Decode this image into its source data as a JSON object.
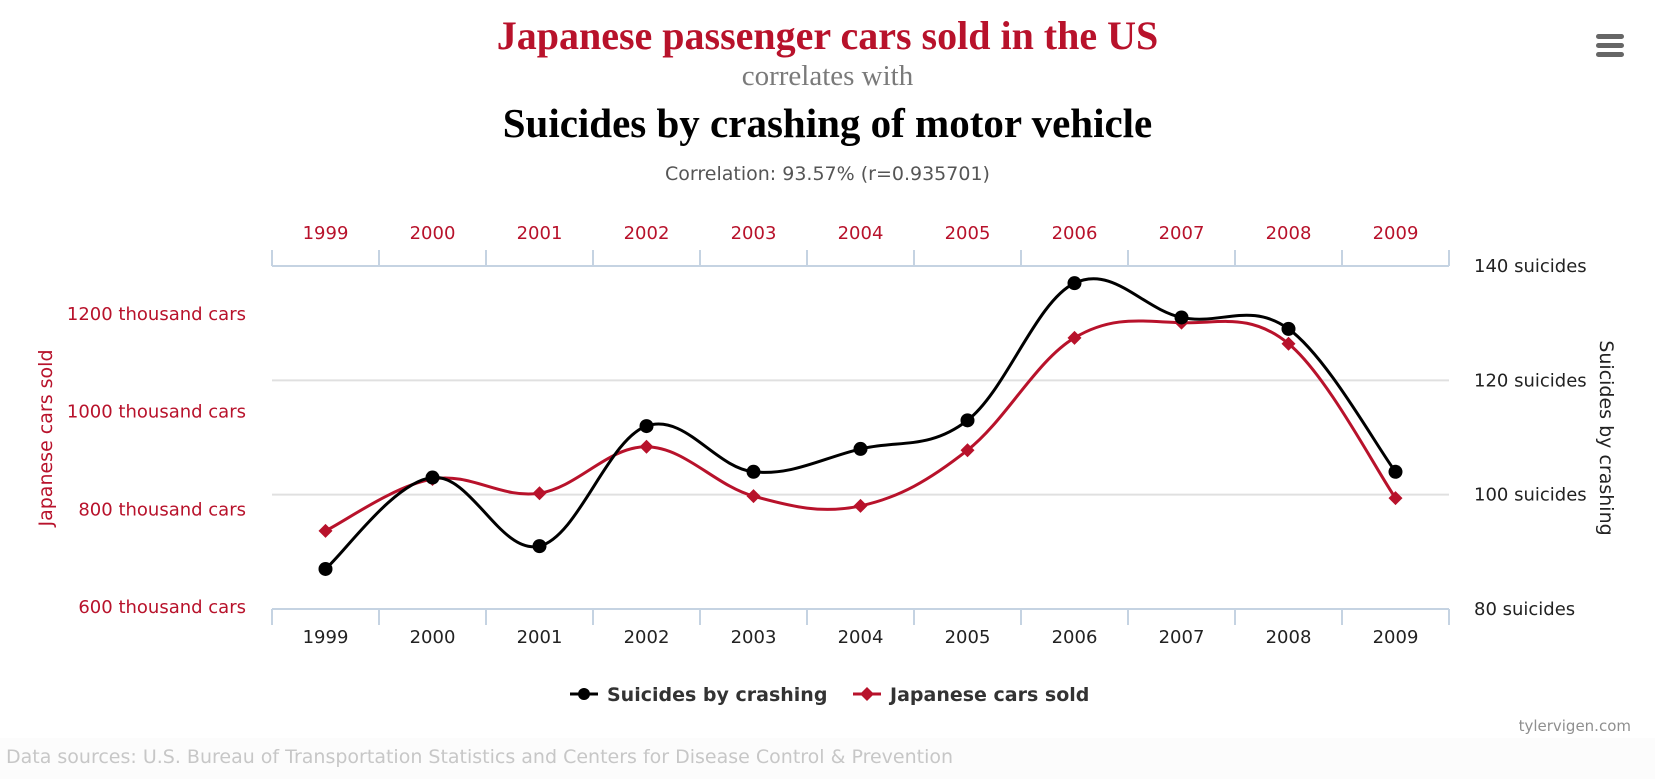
{
  "header": {
    "title_main": "Japanese passenger cars sold in the US",
    "connector": "correlates with",
    "title_second": "Suicides by crashing of motor vehicle",
    "correlation": "Correlation: 93.57% (r=0.935701)"
  },
  "menu": {
    "icon": "hamburger-menu-icon"
  },
  "footer": {
    "sources": "Data sources: U.S. Bureau of Transportation Statistics and Centers for Disease Control & Prevention",
    "credit": "tylervigen.com"
  },
  "colors": {
    "cars": "#b8122b",
    "suicides": "#000000",
    "axis_line": "#c5d3e2",
    "grid": "#e0e0e0",
    "left_label": "#b8122b",
    "right_label": "#222222"
  },
  "chart_data": {
    "type": "line",
    "title": "Japanese passenger cars sold in the US correlates with Suicides by crashing of motor vehicle",
    "x": [
      "1999",
      "2000",
      "2001",
      "2002",
      "2003",
      "2004",
      "2005",
      "2006",
      "2007",
      "2008",
      "2009"
    ],
    "series": [
      {
        "name": "Suicides by crashing",
        "axis": "right",
        "marker": "circle",
        "color": "#000000",
        "values": [
          87,
          103,
          91,
          112,
          104,
          108,
          113,
          137,
          131,
          129,
          104
        ]
      },
      {
        "name": "Japanese cars sold",
        "axis": "left",
        "marker": "diamond",
        "color": "#b8122b",
        "values": [
          756,
          862,
          833,
          928,
          827,
          807,
          921,
          1151,
          1182,
          1139,
          823
        ]
      }
    ],
    "left_axis": {
      "label": "Japanese cars sold",
      "ticks": [
        600,
        800,
        1000,
        1200
      ],
      "tick_labels": [
        "600 thousand cars",
        "800 thousand cars",
        "1000 thousand cars",
        "1200 thousand cars"
      ],
      "ylim": [
        596,
        1298
      ]
    },
    "right_axis": {
      "label": "Suicides by crashing",
      "ticks": [
        80,
        100,
        120,
        140
      ],
      "tick_labels": [
        "80 suicides",
        "100 suicides",
        "120 suicides",
        "140 suicides"
      ],
      "ylim": [
        80,
        140
      ]
    },
    "top_axis_labels": [
      "1999",
      "2000",
      "2001",
      "2002",
      "2003",
      "2004",
      "2005",
      "2006",
      "2007",
      "2008",
      "2009"
    ],
    "bottom_axis_labels": [
      "1999",
      "2000",
      "2001",
      "2002",
      "2003",
      "2004",
      "2005",
      "2006",
      "2007",
      "2008",
      "2009"
    ],
    "grid": true,
    "legend": {
      "position": "bottom-center",
      "items": [
        "Suicides by crashing",
        "Japanese cars sold"
      ]
    }
  }
}
